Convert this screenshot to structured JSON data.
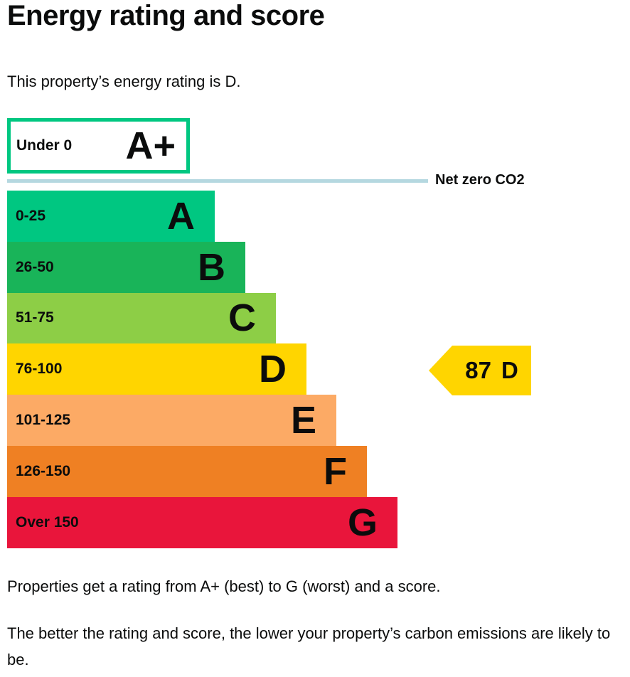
{
  "header": {
    "title": "Energy rating and score",
    "subtitle": "This property’s energy rating is D."
  },
  "colors": {
    "text": "#0b0c0c",
    "net_zero_line": "#b5d8e0",
    "background": "#ffffff"
  },
  "chart_data": {
    "type": "bar",
    "orientation": "horizontal",
    "title": "Energy rating and score",
    "net_zero_label": "Net zero CO2",
    "bands": [
      {
        "rating": "A+",
        "range_label": "Under 0",
        "color": "#00c781",
        "fill": "outline"
      },
      {
        "rating": "A",
        "range_label": "0-25",
        "color": "#00c781",
        "fill": "solid"
      },
      {
        "rating": "B",
        "range_label": "26-50",
        "color": "#19b459",
        "fill": "solid"
      },
      {
        "rating": "C",
        "range_label": "51-75",
        "color": "#8dce46",
        "fill": "solid"
      },
      {
        "rating": "D",
        "range_label": "76-100",
        "color": "#ffd500",
        "fill": "solid"
      },
      {
        "rating": "E",
        "range_label": "101-125",
        "color": "#fcaa65",
        "fill": "solid"
      },
      {
        "rating": "F",
        "range_label": "126-150",
        "color": "#ef8023",
        "fill": "solid"
      },
      {
        "rating": "G",
        "range_label": "Over 150",
        "color": "#e9153b",
        "fill": "solid"
      }
    ],
    "indicator": {
      "score": "87",
      "rating": "D",
      "color": "#ffd500"
    }
  },
  "footer": {
    "para1": "Properties get a rating from A+ (best) to G (worst) and a score.",
    "para2": "The better the rating and score, the lower your property’s carbon emissions are likely to be."
  }
}
